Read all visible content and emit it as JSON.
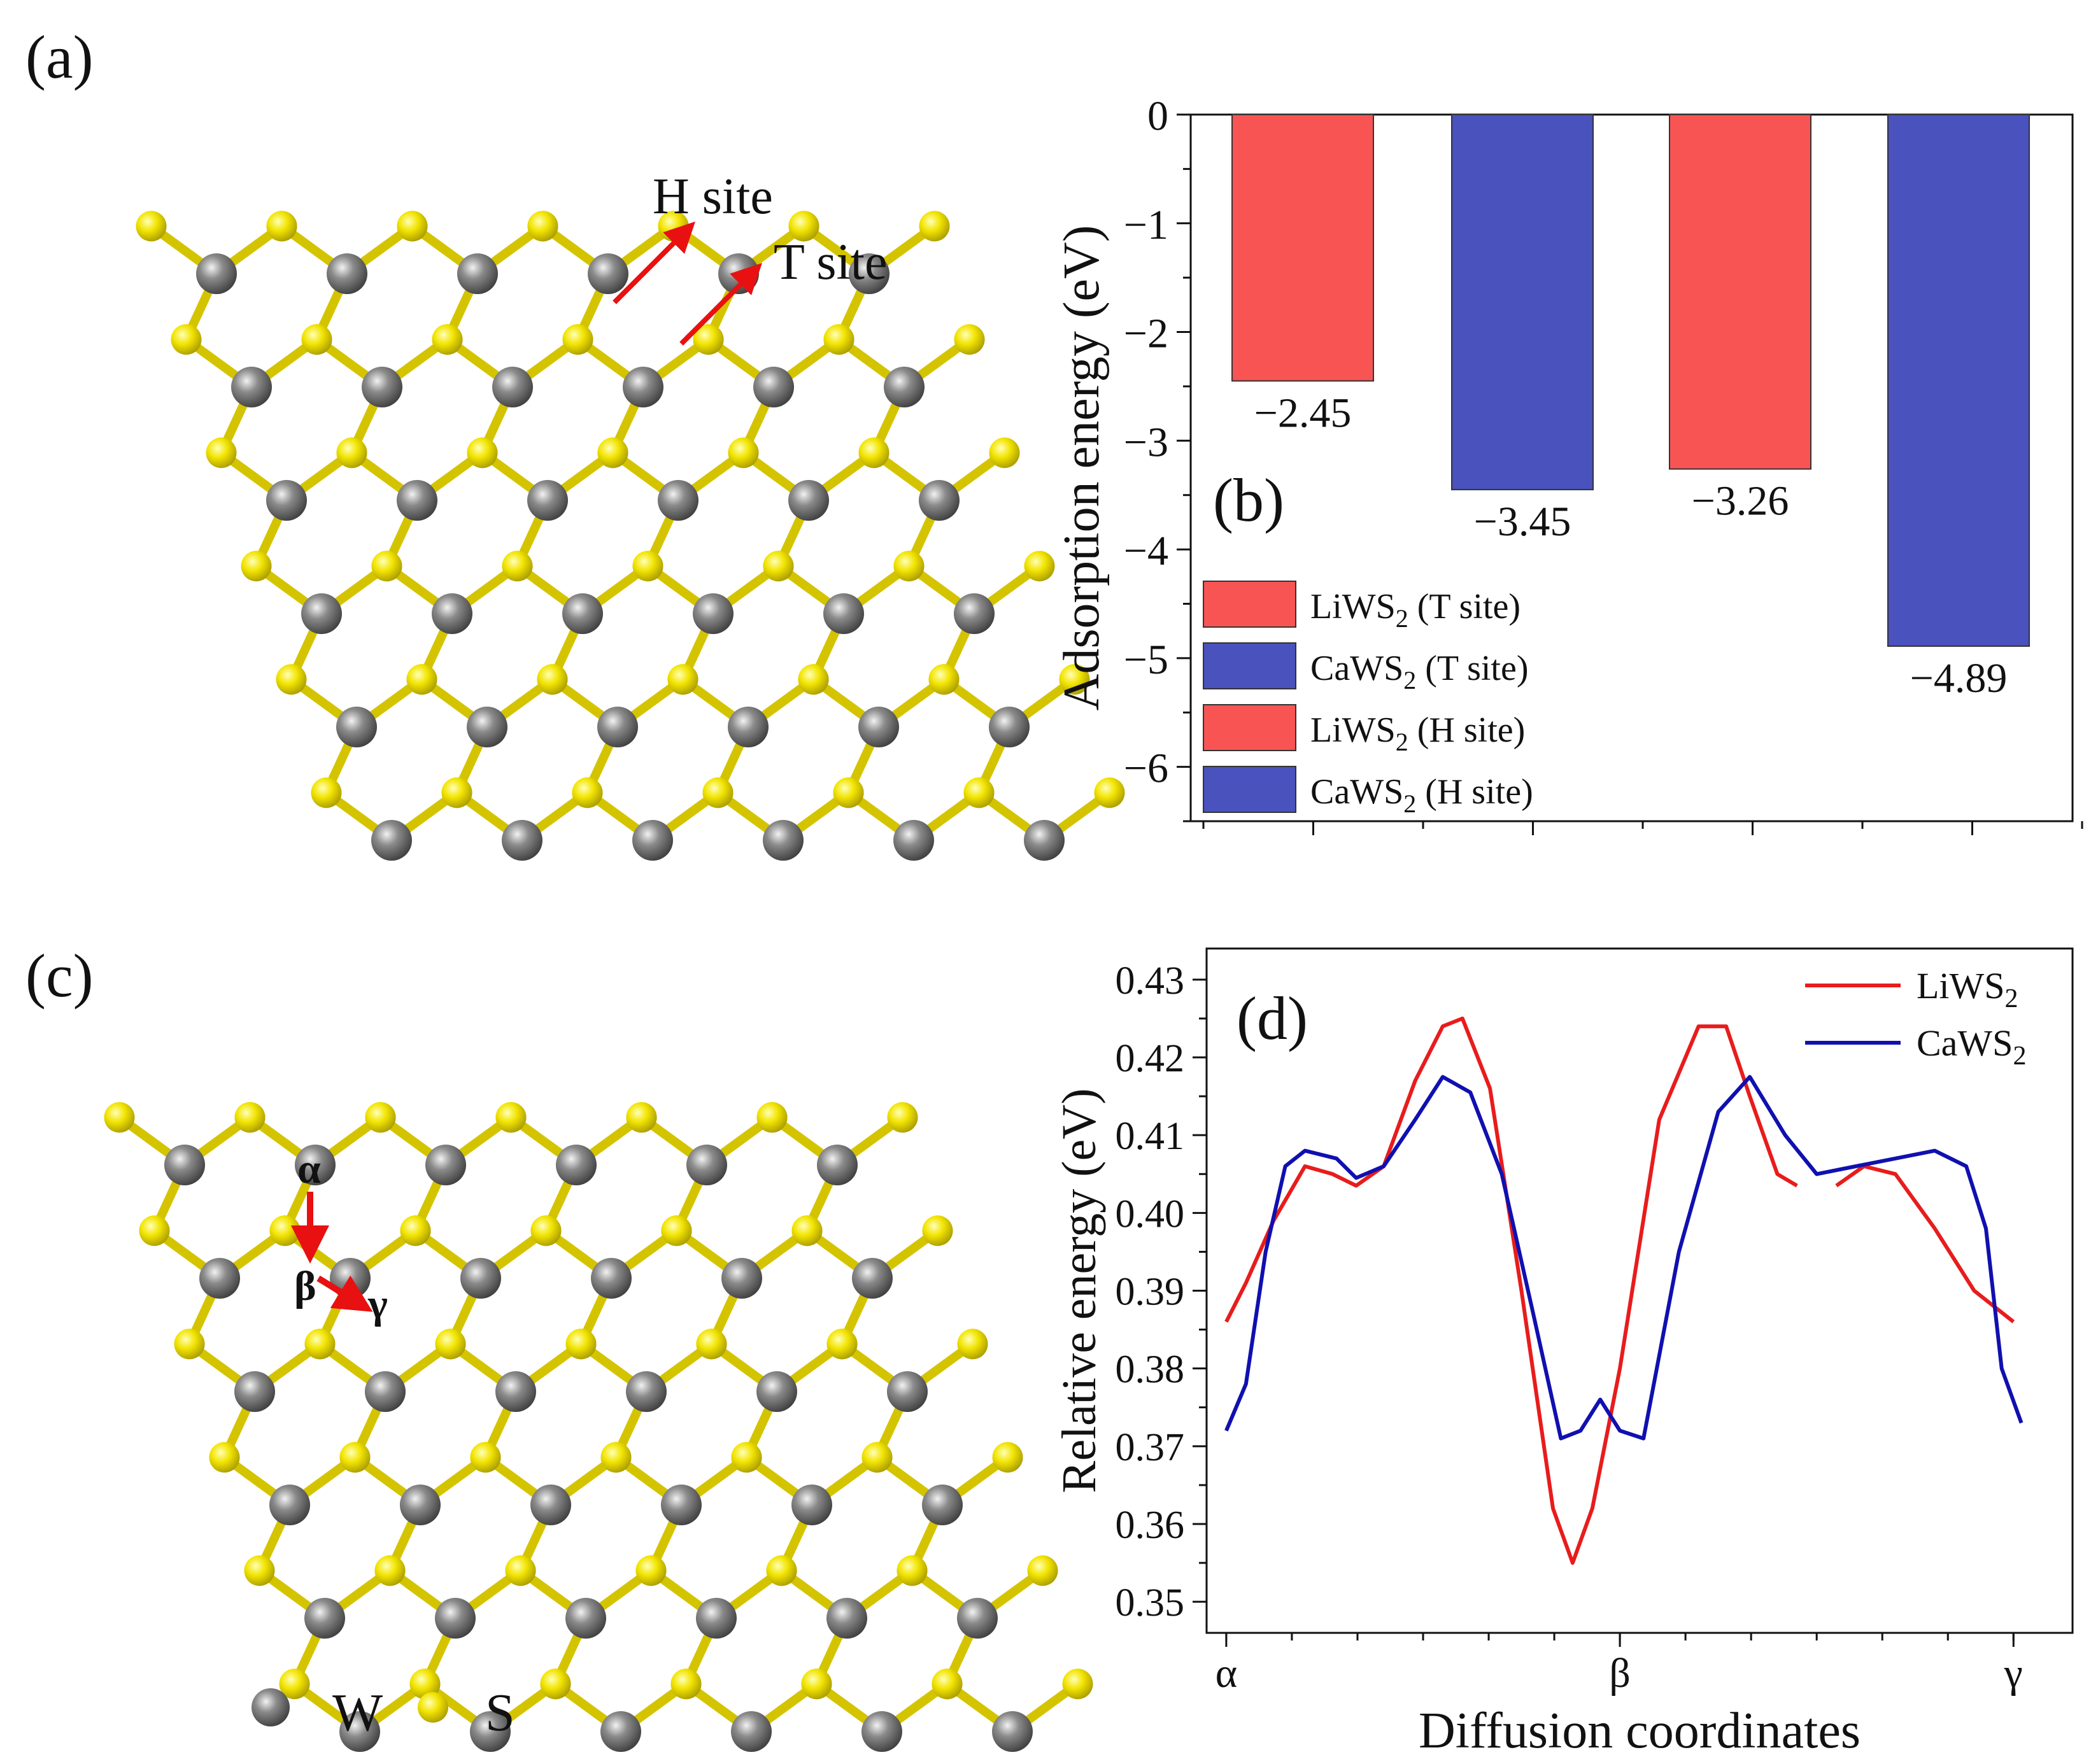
{
  "panels": {
    "a": {
      "label": "(a)",
      "h_site": "H site",
      "t_site": "T site"
    },
    "b": {
      "label": "(b)"
    },
    "c": {
      "label": "(c)",
      "alpha": "α",
      "beta": "β",
      "gamma": "γ",
      "legend_w": "W",
      "legend_s": "S"
    },
    "d": {
      "label": "(d)"
    }
  },
  "colors": {
    "li": "#f85454",
    "ca": "#4a52be",
    "li_line": "#e81c1c",
    "ca_line": "#1010b0",
    "sulfur": "#f0e000",
    "tungsten": "#707070"
  },
  "chart_data": [
    {
      "type": "bar",
      "categories": [
        "LiWS2 (T site)",
        "CaWS2 (T site)",
        "LiWS2 (H site)",
        "CaWS2 (H site)"
      ],
      "values": [
        -2.45,
        -3.45,
        -3.26,
        -4.89
      ],
      "data_labels": [
        "−2.45",
        "−3.45",
        "−3.26",
        "−4.89"
      ],
      "ylabel": "Adsorption  energy (eV)",
      "ylim": [
        -6.5,
        0
      ],
      "yticks": [
        "0",
        "-1",
        "-2",
        "-3",
        "-4",
        "-5",
        "-6"
      ],
      "legend": [
        {
          "base": "LiWS",
          "sub": "2",
          "tail": " (T site)"
        },
        {
          "base": "CaWS",
          "sub": "2",
          "tail": " (T site)"
        },
        {
          "base": "LiWS",
          "sub": "2",
          "tail": " (H site)"
        },
        {
          "base": "CaWS",
          "sub": "2",
          "tail": " (H site)"
        }
      ]
    },
    {
      "type": "line",
      "xlabel": "Diffusion coordinates",
      "ylabel": "Relative energy (eV)",
      "xticks": [
        "α",
        "β",
        "γ"
      ],
      "xlim": [
        -0.05,
        2.15
      ],
      "ylim": [
        0.346,
        0.434
      ],
      "yticks": [
        "0.35",
        "0.36",
        "0.37",
        "0.38",
        "0.39",
        "0.40",
        "0.41",
        "0.42",
        "0.43"
      ],
      "series": [
        {
          "name": "LiWS2",
          "legend_base": "LiWS",
          "legend_sub": "2",
          "segments": [
            [
              [
                0.0,
                0.386
              ],
              [
                0.05,
                0.391
              ],
              [
                0.12,
                0.399
              ],
              [
                0.2,
                0.406
              ],
              [
                0.27,
                0.405
              ],
              [
                0.33,
                0.4035
              ],
              [
                0.4,
                0.406
              ],
              [
                0.48,
                0.417
              ],
              [
                0.55,
                0.424
              ],
              [
                0.6,
                0.425
              ],
              [
                0.67,
                0.416
              ],
              [
                0.75,
                0.39
              ],
              [
                0.83,
                0.362
              ],
              [
                0.88,
                0.355
              ],
              [
                0.93,
                0.362
              ],
              [
                1.0,
                0.38
              ],
              [
                1.1,
                0.412
              ],
              [
                1.2,
                0.424
              ],
              [
                1.27,
                0.424
              ],
              [
                1.33,
                0.415
              ],
              [
                1.4,
                0.405
              ],
              [
                1.45,
                0.4035
              ]
            ],
            [
              [
                1.55,
                0.4035
              ],
              [
                1.62,
                0.406
              ],
              [
                1.7,
                0.405
              ],
              [
                1.8,
                0.398
              ],
              [
                1.9,
                0.39
              ],
              [
                2.0,
                0.386
              ]
            ]
          ]
        },
        {
          "name": "CaWS2",
          "legend_base": "CaWS",
          "legend_sub": "2",
          "segments": [
            [
              [
                0.0,
                0.372
              ],
              [
                0.05,
                0.378
              ],
              [
                0.1,
                0.395
              ],
              [
                0.15,
                0.406
              ],
              [
                0.2,
                0.408
              ],
              [
                0.28,
                0.407
              ],
              [
                0.33,
                0.4045
              ],
              [
                0.4,
                0.406
              ],
              [
                0.48,
                0.412
              ],
              [
                0.55,
                0.4175
              ],
              [
                0.62,
                0.4155
              ],
              [
                0.7,
                0.405
              ],
              [
                0.78,
                0.387
              ],
              [
                0.85,
                0.371
              ],
              [
                0.9,
                0.372
              ],
              [
                0.95,
                0.376
              ],
              [
                1.0,
                0.372
              ],
              [
                1.06,
                0.371
              ],
              [
                1.15,
                0.395
              ],
              [
                1.25,
                0.413
              ],
              [
                1.33,
                0.4175
              ],
              [
                1.42,
                0.41
              ],
              [
                1.5,
                0.405
              ],
              [
                1.6,
                0.406
              ],
              [
                1.7,
                0.407
              ],
              [
                1.8,
                0.408
              ],
              [
                1.88,
                0.406
              ],
              [
                1.93,
                0.398
              ],
              [
                1.97,
                0.38
              ],
              [
                2.02,
                0.373
              ]
            ]
          ]
        }
      ]
    }
  ]
}
